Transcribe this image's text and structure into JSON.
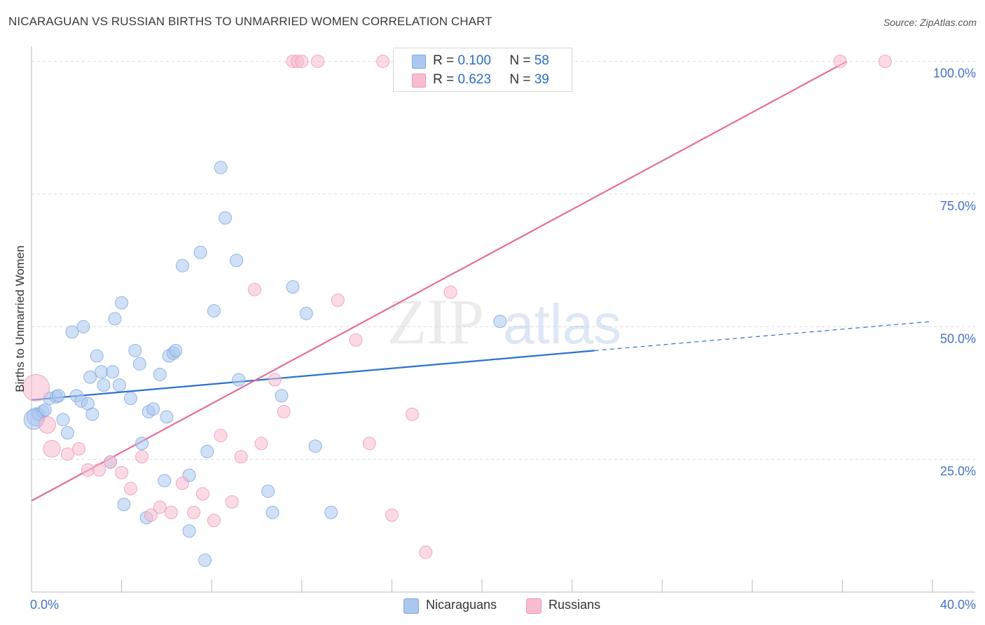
{
  "title": "NICARAGUAN VS RUSSIAN BIRTHS TO UNMARRIED WOMEN CORRELATION CHART",
  "source": "Source: ZipAtlas.com",
  "watermark": {
    "part1": "ZIP",
    "part2": "atlas"
  },
  "legend": {
    "r_label": "R =",
    "n_label": "N =",
    "rows": [
      {
        "r": "0.100",
        "n": "58",
        "color": "#aac8f0"
      },
      {
        "r": "0.623",
        "n": "39",
        "color": "#f8bcd0"
      }
    ]
  },
  "bottom_legend": [
    {
      "label": "Nicaraguans",
      "color": "#aac8f0"
    },
    {
      "label": "Russians",
      "color": "#f8bcd0"
    }
  ],
  "colors": {
    "blue_fill": "#a9c6ee",
    "blue_stroke": "#7ea6dd",
    "blue_line": "#2a72d0",
    "pink_fill": "#f7bcd0",
    "pink_stroke": "#ef95b3",
    "pink_line": "#e46e98"
  },
  "chart_data": {
    "type": "scatter",
    "title": "NICARAGUAN VS RUSSIAN BIRTHS TO UNMARRIED WOMEN CORRELATION CHART",
    "xlabel": "",
    "ylabel": "Births to Unmarried Women",
    "xlim": [
      0,
      40
    ],
    "ylim": [
      0,
      101
    ],
    "x_tick_labels": [
      "0.0%",
      "40.0%"
    ],
    "y_ticks": [
      25,
      50,
      75,
      100
    ],
    "y_tick_labels": [
      "25.0%",
      "50.0%",
      "75.0%",
      "100.0%"
    ],
    "grid": true,
    "series": [
      {
        "name": "Nicaraguans",
        "points": [
          [
            0.2,
            33
          ],
          [
            0.3,
            33.5
          ],
          [
            0.5,
            34
          ],
          [
            0.6,
            34.3
          ],
          [
            0.8,
            36.5
          ],
          [
            1.1,
            36.8
          ],
          [
            1.2,
            37
          ],
          [
            1.4,
            32.5
          ],
          [
            1.6,
            30
          ],
          [
            1.8,
            49
          ],
          [
            2.0,
            37
          ],
          [
            2.2,
            36
          ],
          [
            2.3,
            50
          ],
          [
            2.5,
            35.5
          ],
          [
            2.6,
            40.5
          ],
          [
            2.7,
            33.5
          ],
          [
            2.9,
            44.5
          ],
          [
            3.1,
            41.5
          ],
          [
            3.2,
            39
          ],
          [
            3.6,
            41.5
          ],
          [
            3.7,
            51.5
          ],
          [
            3.9,
            39
          ],
          [
            4.0,
            54.5
          ],
          [
            4.4,
            36.5
          ],
          [
            4.6,
            45.5
          ],
          [
            4.8,
            43
          ],
          [
            4.9,
            28
          ],
          [
            5.2,
            34
          ],
          [
            5.4,
            34.5
          ],
          [
            5.7,
            41
          ],
          [
            5.9,
            21
          ],
          [
            6.0,
            33
          ],
          [
            6.1,
            44.5
          ],
          [
            6.3,
            45
          ],
          [
            6.4,
            45.5
          ],
          [
            6.7,
            61.5
          ],
          [
            7.0,
            22
          ],
          [
            7.5,
            64
          ],
          [
            7.8,
            26.5
          ],
          [
            8.1,
            53
          ],
          [
            8.4,
            80
          ],
          [
            8.6,
            70.5
          ],
          [
            9.1,
            62.5
          ],
          [
            9.2,
            40
          ],
          [
            10.5,
            19
          ],
          [
            10.7,
            15
          ],
          [
            11.1,
            37
          ],
          [
            11.6,
            57.5
          ],
          [
            12.2,
            52.5
          ],
          [
            12.6,
            27.5
          ],
          [
            13.3,
            15
          ],
          [
            20.8,
            51
          ],
          [
            4.1,
            16.5
          ],
          [
            5.1,
            14
          ],
          [
            7.0,
            11.5
          ],
          [
            7.7,
            6
          ],
          [
            3.5,
            24.5
          ],
          [
            0.1,
            32.5
          ]
        ]
      },
      {
        "name": "Russians",
        "points": [
          [
            0.2,
            38.5
          ],
          [
            0.7,
            31.5
          ],
          [
            0.9,
            27
          ],
          [
            1.6,
            26
          ],
          [
            2.1,
            27
          ],
          [
            2.5,
            23
          ],
          [
            3.0,
            23
          ],
          [
            3.5,
            24.5
          ],
          [
            4.0,
            22.5
          ],
          [
            4.4,
            19.5
          ],
          [
            4.9,
            25.5
          ],
          [
            5.3,
            14.5
          ],
          [
            5.7,
            16
          ],
          [
            6.2,
            15
          ],
          [
            6.7,
            20.5
          ],
          [
            7.2,
            15
          ],
          [
            7.6,
            18.5
          ],
          [
            8.1,
            13.5
          ],
          [
            8.4,
            29.5
          ],
          [
            8.9,
            17
          ],
          [
            9.3,
            25.5
          ],
          [
            9.9,
            57
          ],
          [
            10.2,
            28
          ],
          [
            10.8,
            40
          ],
          [
            11.2,
            34
          ],
          [
            11.6,
            100
          ],
          [
            11.8,
            100
          ],
          [
            12.0,
            100
          ],
          [
            12.7,
            100
          ],
          [
            13.6,
            55
          ],
          [
            14.4,
            47.5
          ],
          [
            15.0,
            28
          ],
          [
            15.6,
            100
          ],
          [
            16.0,
            14.5
          ],
          [
            16.9,
            33.5
          ],
          [
            17.5,
            7.5
          ],
          [
            18.6,
            56.5
          ],
          [
            35.9,
            100
          ],
          [
            37.9,
            100
          ]
        ]
      }
    ],
    "trend_lines": [
      {
        "series": "Nicaraguans",
        "from": [
          0,
          36.2
        ],
        "to": [
          25,
          45.5
        ],
        "dashed_to": [
          40,
          51
        ]
      },
      {
        "series": "Russians",
        "from": [
          0,
          17.2
        ],
        "to": [
          36.2,
          100
        ]
      }
    ]
  }
}
